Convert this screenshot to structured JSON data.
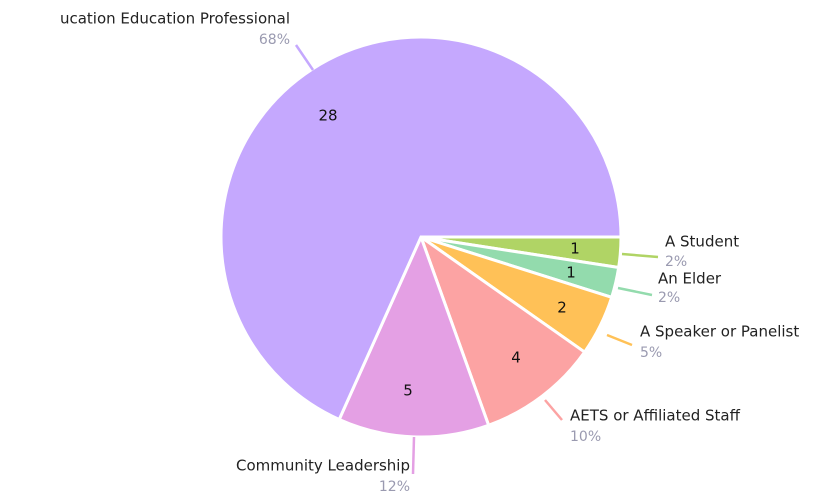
{
  "chart_data": {
    "type": "pie",
    "categories": [
      "A Student",
      "An Elder",
      "A Speaker or Panelist",
      "AETS or Affiliated Staff",
      "Community Leadership",
      "ucation Education Professional"
    ],
    "values": [
      1,
      1,
      2,
      4,
      5,
      28
    ],
    "percent_labels": [
      "2%",
      "2%",
      "5%",
      "10%",
      "12%",
      "68%"
    ],
    "colors": [
      "#b0d465",
      "#93dbad",
      "#ffc157",
      "#fca3a3",
      "#e4a0e4",
      "#c5a8fe"
    ]
  }
}
